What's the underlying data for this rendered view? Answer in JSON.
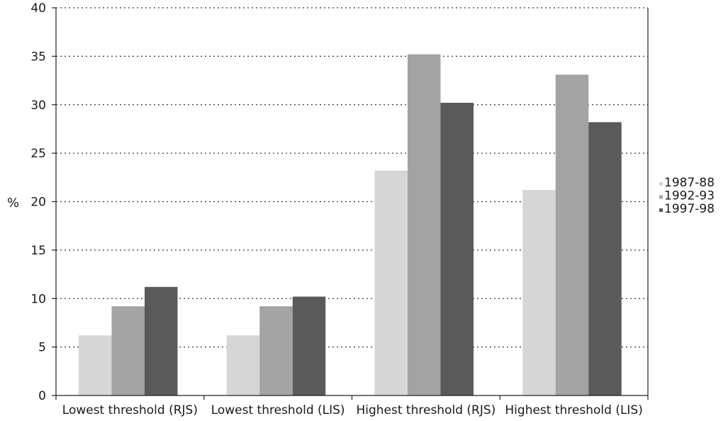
{
  "chart_data": {
    "type": "bar",
    "title": "",
    "xlabel": "",
    "ylabel": "%",
    "ylim": [
      0,
      40
    ],
    "yticks": [
      0,
      5,
      10,
      15,
      20,
      25,
      30,
      35,
      40
    ],
    "grid": "horizontal dotted",
    "legend_position": "right",
    "categories": [
      "Lowest threshold (RJS)",
      "Lowest threshold (LIS)",
      "Highest threshold (RJS)",
      "Highest threshold (LIS)"
    ],
    "series": [
      {
        "name": "1987-88",
        "color": "#d6d6d6",
        "values": [
          6.2,
          6.2,
          23.2,
          21.2
        ]
      },
      {
        "name": "1992-93",
        "color": "#a3a3a3",
        "values": [
          9.2,
          9.2,
          35.2,
          33.1
        ]
      },
      {
        "name": "1997-98",
        "color": "#5a5a5a",
        "values": [
          11.2,
          10.2,
          30.2,
          28.2
        ]
      }
    ]
  }
}
